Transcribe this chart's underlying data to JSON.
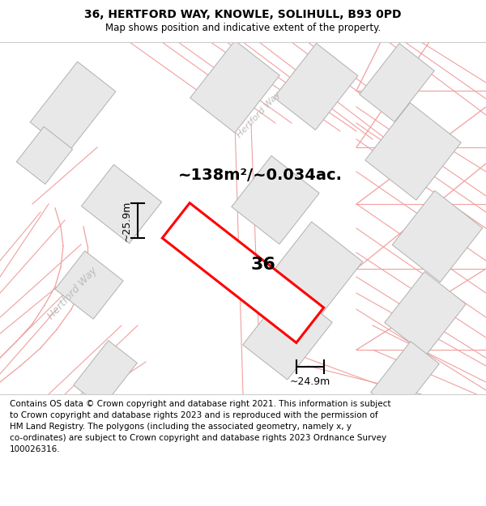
{
  "title": "36, HERTFORD WAY, KNOWLE, SOLIHULL, B93 0PD",
  "subtitle": "Map shows position and indicative extent of the property.",
  "area_label": "~138m²/~0.034ac.",
  "number_label": "36",
  "width_label": "~24.9m",
  "height_label": "~25.9m",
  "road_label_left": "Hertford Way",
  "road_label_top": "Hertford Way",
  "footer_line1": "Contains OS data © Crown copyright and database right 2021. This information is subject",
  "footer_line2": "to Crown copyright and database rights 2023 and is reproduced with the permission of",
  "footer_line3": "HM Land Registry. The polygons (including the associated geometry, namely x, y",
  "footer_line4": "co-ordinates) are subject to Crown copyright and database rights 2023 Ordnance Survey",
  "footer_line5": "100026316.",
  "map_bg": "#ffffff",
  "building_fill": "#e8e8e8",
  "building_edge": "#b0b0b0",
  "boundary_color": "#f0a0a0",
  "plot_color": "#ff0000",
  "road_label_color": "#bbbbbb",
  "title_fontsize": 10,
  "subtitle_fontsize": 8.5,
  "footer_fontsize": 7.5,
  "area_fontsize": 14,
  "number_fontsize": 16,
  "dim_fontsize": 9
}
